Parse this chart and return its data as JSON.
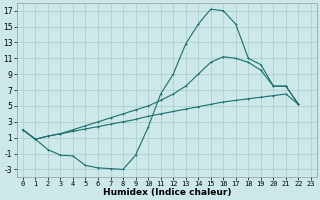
{
  "xlabel": "Humidex (Indice chaleur)",
  "bg_color": "#cce8e8",
  "grid_color_major": "#aacccc",
  "grid_color_minor": "#bbdddd",
  "line_color": "#1a6e6e",
  "xlim": [
    -0.5,
    23.5
  ],
  "ylim": [
    -4,
    18
  ],
  "yticks": [
    -3,
    -1,
    1,
    3,
    5,
    7,
    9,
    11,
    13,
    15,
    17
  ],
  "xticks": [
    0,
    1,
    2,
    3,
    4,
    5,
    6,
    7,
    8,
    9,
    10,
    11,
    12,
    13,
    14,
    15,
    16,
    17,
    18,
    19,
    20,
    21,
    22,
    23
  ],
  "series": [
    {
      "x": [
        0,
        1,
        2,
        3,
        4,
        5,
        6,
        7,
        8,
        9,
        10,
        11,
        12,
        13,
        14,
        15,
        16,
        17,
        18,
        19,
        20,
        21,
        22
      ],
      "y": [
        2,
        0.8,
        -0.5,
        -1.2,
        -1.3,
        -2.5,
        -2.8,
        -2.9,
        -3.0,
        -1.2,
        2.3,
        6.5,
        9.0,
        12.8,
        15.3,
        17.2,
        17.0,
        15.3,
        11.0,
        10.2,
        7.5,
        7.5,
        5.2
      ]
    },
    {
      "x": [
        0,
        1,
        2,
        3,
        4,
        5,
        6,
        7,
        8,
        9,
        10,
        11,
        12,
        13,
        14,
        15,
        16,
        17,
        18,
        19,
        20,
        21,
        22
      ],
      "y": [
        2,
        0.8,
        1.2,
        1.5,
        1.8,
        2.1,
        2.4,
        2.7,
        3.0,
        3.3,
        3.7,
        4.0,
        4.3,
        4.6,
        4.9,
        5.2,
        5.5,
        5.7,
        5.9,
        6.1,
        6.3,
        6.5,
        5.2
      ]
    },
    {
      "x": [
        0,
        1,
        2,
        3,
        4,
        5,
        6,
        7,
        8,
        9,
        10,
        11,
        12,
        13,
        14,
        15,
        16,
        17,
        18,
        19,
        20,
        21,
        22
      ],
      "y": [
        2,
        0.8,
        1.2,
        1.5,
        2.0,
        2.5,
        3.0,
        3.5,
        4.0,
        4.5,
        5.0,
        5.7,
        6.5,
        7.5,
        9.0,
        10.5,
        11.2,
        11.0,
        10.5,
        9.5,
        7.5,
        7.5,
        5.2
      ]
    }
  ],
  "xlabel_fontsize": 6.5,
  "xlabel_fontweight": "bold",
  "tick_fontsize_x": 5,
  "tick_fontsize_y": 5.5,
  "linewidth": 0.8,
  "markersize": 2.0
}
